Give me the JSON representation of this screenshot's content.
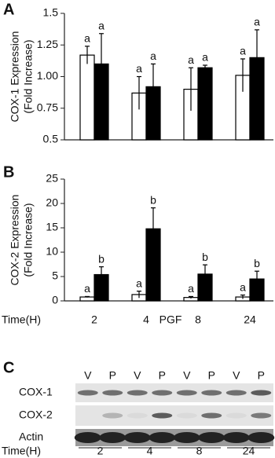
{
  "chart_data": [
    {
      "type": "bar",
      "panel_label": "A",
      "ylabel": [
        "COX-1 Expression",
        "(Fold Increase)"
      ],
      "categories": [
        null,
        null,
        null,
        null
      ],
      "ylim": [
        0.5,
        1.5
      ],
      "yticks": [
        0.5,
        0.75,
        {
          "value": 1,
          "label": "1.00"
        },
        1.25,
        1.5
      ],
      "series": [
        {
          "color": "#ffffff",
          "values": [
            1.17,
            0.87,
            0.9,
            1.01
          ],
          "errors": [
            0.07,
            0.13,
            0.17,
            0.13
          ],
          "letters": [
            "a",
            "a",
            "a",
            "a"
          ]
        },
        {
          "color": "#000000",
          "values": [
            1.1,
            0.92,
            1.07,
            1.15
          ],
          "errors": [
            0.24,
            0.18,
            0.02,
            0.22
          ],
          "letters": [
            "a",
            "a",
            "a",
            "a"
          ]
        }
      ]
    },
    {
      "type": "bar",
      "panel_label": "B",
      "ylabel": [
        "COX-2 Expression",
        "(Fold Increase)"
      ],
      "xlabel": "Time(H)",
      "annotation": "PGF",
      "categories": [
        "2",
        "4",
        "8",
        "24"
      ],
      "ylim": [
        0,
        25
      ],
      "yticks": [
        0,
        5,
        10,
        15,
        20,
        25
      ],
      "series": [
        {
          "color": "#ffffff",
          "values": [
            0.8,
            1.3,
            0.7,
            0.8
          ],
          "errors": [
            0.1,
            0.7,
            0.2,
            0.4
          ],
          "letters": [
            "a",
            "a",
            "a",
            "a"
          ]
        },
        {
          "color": "#000000",
          "values": [
            5.4,
            14.8,
            5.5,
            4.5
          ],
          "errors": [
            1.6,
            4.3,
            1.9,
            1.6
          ],
          "letters": [
            "b",
            "b",
            "b",
            "b"
          ]
        }
      ]
    }
  ],
  "blot": {
    "panel_label": "C",
    "lanes": [
      "V",
      "P",
      "V",
      "P",
      "V",
      "P",
      "V",
      "P"
    ],
    "rows": [
      "COX-1",
      "COX-2",
      "Actin"
    ],
    "xlabel": "Time(H)",
    "times": [
      "2",
      "4",
      "8",
      "24"
    ]
  }
}
